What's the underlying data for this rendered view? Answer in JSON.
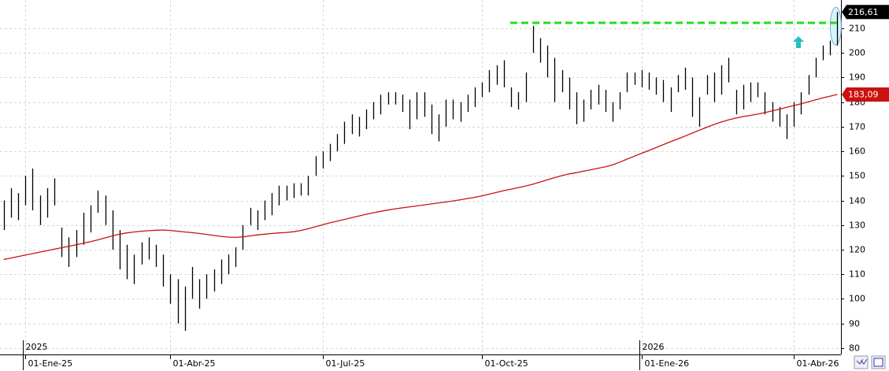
{
  "chart_data": {
    "type": "ohlc",
    "categories": [
      null,
      null,
      null,
      "01-Ene-25",
      null,
      null,
      null,
      null,
      null,
      null,
      null,
      null,
      null,
      null,
      null,
      null,
      null,
      null,
      null,
      null,
      null,
      null,
      null,
      "01-Abr-25",
      null,
      null,
      null,
      null,
      null,
      null,
      null,
      null,
      null,
      null,
      null,
      null,
      null,
      null,
      null,
      null,
      null,
      null,
      null,
      null,
      "01-Jul-25",
      null,
      null,
      null,
      null,
      null,
      null,
      null,
      null,
      null,
      null,
      null,
      null,
      null,
      null,
      null,
      null,
      null,
      null,
      null,
      null,
      null,
      "01-Oct-25",
      null,
      null,
      null,
      null,
      null,
      null,
      null,
      null,
      null,
      null,
      null,
      null,
      null,
      null,
      null,
      null,
      null,
      null,
      null,
      null,
      null,
      "01-Ene-26",
      null,
      null,
      null,
      null,
      null,
      null,
      null,
      null,
      null,
      null,
      null,
      null,
      null,
      null,
      null,
      null,
      null,
      null,
      null,
      null,
      "01-Abr-26",
      null,
      null,
      null,
      null,
      null,
      null
    ],
    "year_labels": [
      {
        "label": "2025",
        "at": "01-Ene-25"
      },
      {
        "label": "2026",
        "at": "01-Ene-26"
      }
    ],
    "series": [
      {
        "type": "bar",
        "color": "#000000",
        "high": [
          140,
          145,
          143,
          150,
          153,
          142,
          145,
          149,
          129,
          125,
          128,
          135,
          138,
          144,
          142,
          136,
          128,
          122,
          118,
          123,
          125,
          122,
          118,
          110,
          108,
          105,
          113,
          108,
          110,
          112,
          116,
          118,
          121,
          130,
          137,
          136,
          140,
          143,
          146,
          146,
          147,
          147,
          150,
          158,
          160,
          163,
          167,
          172,
          175,
          174,
          177,
          180,
          183,
          184,
          184,
          183,
          181,
          184,
          184,
          179,
          175,
          181,
          181,
          180,
          183,
          186,
          188,
          193,
          195,
          197,
          186,
          184,
          192,
          211,
          206,
          203,
          198,
          193,
          190,
          184,
          181,
          185,
          187,
          185,
          180,
          184,
          192,
          192,
          193,
          192,
          190,
          189,
          186,
          191,
          194,
          190,
          182,
          191,
          192,
          195,
          198,
          185,
          187,
          188,
          188,
          184,
          180,
          178,
          175,
          180,
          184,
          191,
          198,
          203,
          205,
          216.61
        ],
        "low": [
          128,
          133,
          132,
          138,
          136,
          130,
          133,
          138,
          117,
          113,
          117,
          122,
          127,
          135,
          130,
          120,
          112,
          108,
          106,
          114,
          116,
          113,
          105,
          98,
          90,
          87,
          100,
          96,
          100,
          103,
          106,
          110,
          113,
          120,
          130,
          128,
          132,
          134,
          138,
          140,
          141,
          142,
          142,
          150,
          153,
          156,
          160,
          163,
          167,
          166,
          169,
          173,
          175,
          179,
          179,
          176,
          169,
          173,
          174,
          167,
          164,
          170,
          173,
          172,
          176,
          178,
          182,
          184,
          187,
          186,
          178,
          177,
          180,
          200,
          196,
          190,
          180,
          184,
          177,
          171,
          172,
          177,
          179,
          176,
          172,
          177,
          184,
          187,
          186,
          185,
          183,
          180,
          176,
          184,
          185,
          174,
          170,
          183,
          180,
          183,
          188,
          175,
          177,
          180,
          182,
          175,
          172,
          170,
          165,
          170,
          175,
          183,
          190,
          197,
          199,
          203
        ],
        "last_value_label": "216,61"
      },
      {
        "type": "line",
        "color": "#cc1111",
        "values": [
          116,
          116.6,
          117.2,
          117.8,
          118.4,
          119,
          119.6,
          120.2,
          120.8,
          121.4,
          122,
          122.6,
          123.3,
          124,
          124.8,
          125.6,
          126.3,
          126.8,
          127.2,
          127.5,
          127.7,
          127.9,
          128,
          127.8,
          127.5,
          127.2,
          126.9,
          126.6,
          126.2,
          125.8,
          125.4,
          125.1,
          125,
          125.2,
          125.6,
          126,
          126.3,
          126.6,
          126.8,
          127,
          127.3,
          127.8,
          128.5,
          129.3,
          130.1,
          130.9,
          131.6,
          132.3,
          133,
          133.7,
          134.4,
          135,
          135.6,
          136.1,
          136.6,
          137,
          137.4,
          137.8,
          138.2,
          138.6,
          139,
          139.4,
          139.8,
          140.3,
          140.8,
          141.3,
          141.9,
          142.6,
          143.3,
          144,
          144.6,
          145.2,
          145.9,
          146.6,
          147.5,
          148.4,
          149.3,
          150.1,
          150.8,
          151.3,
          151.9,
          152.5,
          153.1,
          153.7,
          154.5,
          155.6,
          156.8,
          158,
          159.2,
          160.3,
          161.5,
          162.7,
          163.9,
          165,
          166.2,
          167.4,
          168.6,
          169.8,
          170.9,
          171.9,
          172.8,
          173.5,
          174.1,
          174.6,
          175.1,
          175.7,
          176.4,
          177.1,
          177.9,
          178.6,
          179.3,
          180.1,
          180.9,
          181.7,
          182.4,
          183.09
        ],
        "last_value_label": "183,09"
      }
    ],
    "hline": {
      "value": 212.2,
      "color": "#22dd22"
    },
    "ylim": [
      77.4,
      221.5
    ],
    "yticks": [
      80,
      90,
      100,
      110,
      120,
      130,
      140,
      150,
      160,
      170,
      180,
      190,
      200,
      210
    ],
    "grid": true
  }
}
